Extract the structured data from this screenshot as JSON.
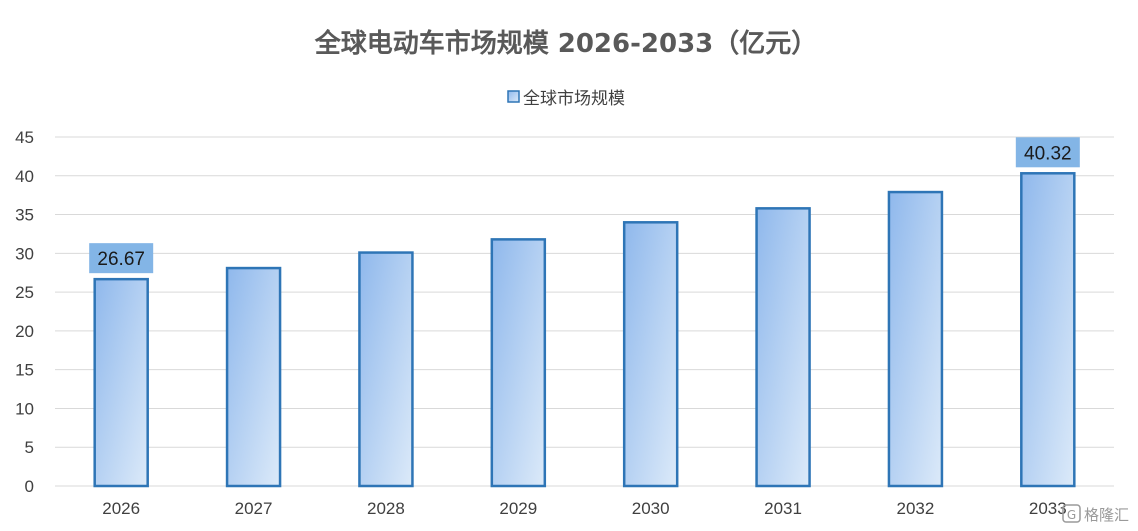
{
  "chart_data": {
    "type": "bar",
    "title": "全球电动车市场规模 2026-2033（亿元）",
    "categories": [
      "2026",
      "2027",
      "2028",
      "2029",
      "2030",
      "2031",
      "2032",
      "2033"
    ],
    "series": [
      {
        "name": "全球市场规模",
        "values": [
          26.67,
          28.1,
          30.1,
          31.8,
          34.0,
          35.8,
          37.9,
          40.32
        ]
      }
    ],
    "data_labels": [
      {
        "category": "2026",
        "text": "26.67"
      },
      {
        "category": "2033",
        "text": "40.32"
      }
    ],
    "ylim": [
      0,
      45
    ],
    "yticks": [
      0,
      5,
      10,
      15,
      20,
      25,
      30,
      35,
      40,
      45
    ],
    "grid": true,
    "legend_position": "top-center",
    "colors": {
      "bar_fill_top": "#8fb8ec",
      "bar_fill_bottom": "#dceaf9",
      "bar_stroke": "#2e75b6",
      "label_bg": "#83b5e6",
      "grid": "#d9d9d9"
    }
  },
  "watermark": {
    "text": "格隆汇",
    "icon": "g-logo-icon"
  }
}
